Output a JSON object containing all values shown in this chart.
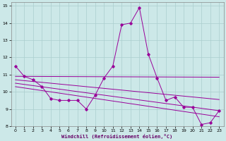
{
  "xlabel": "Windchill (Refroidissement éolien,°C)",
  "background_color": "#cce8e8",
  "grid_color": "#aacece",
  "line_color": "#990099",
  "xlim": [
    -0.5,
    23.5
  ],
  "ylim": [
    8,
    15.2
  ],
  "xticks": [
    0,
    1,
    2,
    3,
    4,
    5,
    6,
    7,
    8,
    9,
    10,
    11,
    12,
    13,
    14,
    15,
    16,
    17,
    18,
    19,
    20,
    21,
    22,
    23
  ],
  "yticks": [
    8,
    9,
    10,
    11,
    12,
    13,
    14,
    15
  ],
  "main_series": [
    11.5,
    10.9,
    10.7,
    10.3,
    9.6,
    9.5,
    9.5,
    9.5,
    9.0,
    9.8,
    10.8,
    11.5,
    13.9,
    14.0,
    14.9,
    12.2,
    10.8,
    9.5,
    9.7,
    9.1,
    9.1,
    8.1,
    8.2,
    8.9
  ],
  "trend_lines": [
    {
      "x0": 0,
      "y0": 10.9,
      "x1": 23,
      "y1": 10.85
    },
    {
      "x0": 0,
      "y0": 10.7,
      "x1": 23,
      "y1": 9.55
    },
    {
      "x0": 0,
      "y0": 10.5,
      "x1": 23,
      "y1": 8.9
    },
    {
      "x0": 0,
      "y0": 10.3,
      "x1": 23,
      "y1": 8.55
    }
  ]
}
